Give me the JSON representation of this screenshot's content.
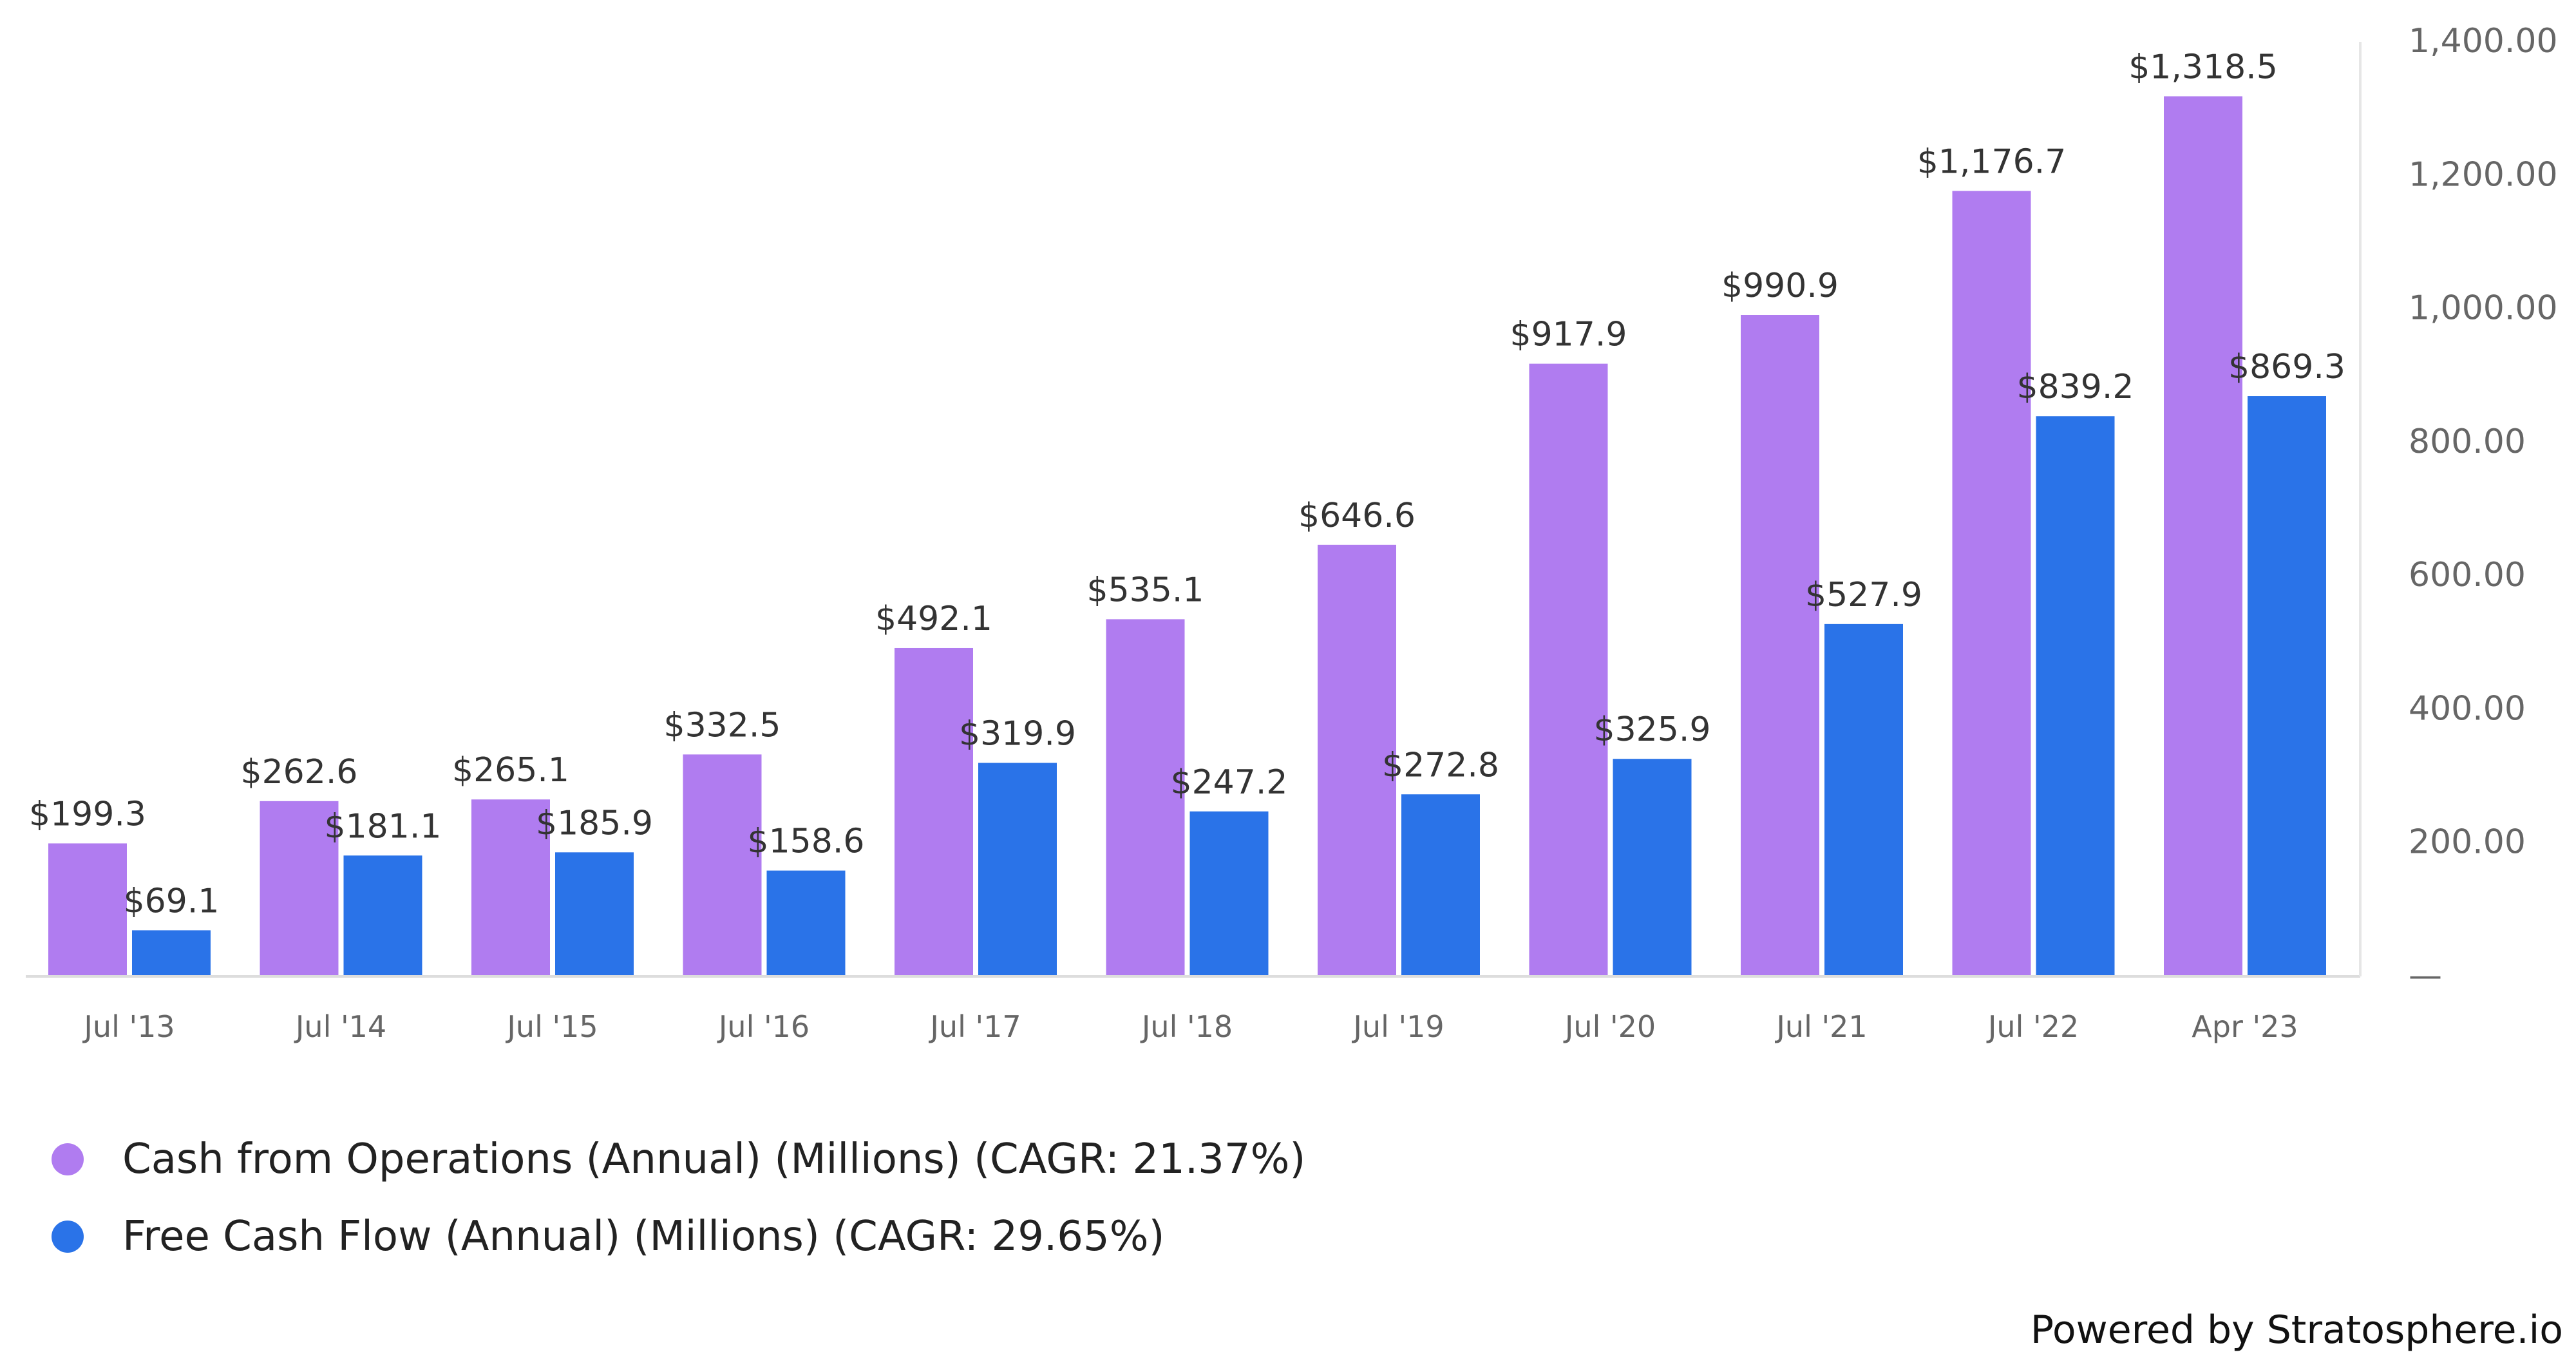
{
  "chart_data": {
    "type": "bar",
    "categories": [
      "Jul '13",
      "Jul '14",
      "Jul '15",
      "Jul '16",
      "Jul '17",
      "Jul '18",
      "Jul '19",
      "Jul '20",
      "Jul '21",
      "Jul '22",
      "Apr '23"
    ],
    "series": [
      {
        "name": "Cash from Operations (Annual) (Millions) (CAGR: 21.37%)",
        "color": "#b07cf0",
        "values": [
          199.3,
          262.6,
          265.1,
          332.5,
          492.1,
          535.1,
          646.6,
          917.9,
          990.9,
          1176.7,
          1318.5
        ],
        "labels": [
          "$199.3",
          "$262.6",
          "$265.1",
          "$332.5",
          "$492.1",
          "$535.1",
          "$646.6",
          "$917.9",
          "$990.9",
          "$1,176.7",
          "$1,318.5"
        ]
      },
      {
        "name": "Free Cash Flow (Annual) (Millions) (CAGR: 29.65%)",
        "color": "#2a73e8",
        "values": [
          69.1,
          181.1,
          185.9,
          158.6,
          319.9,
          247.2,
          272.8,
          325.9,
          527.9,
          839.2,
          869.3
        ],
        "labels": [
          "$69.1",
          "$181.1",
          "$185.9",
          "$158.6",
          "$319.9",
          "$247.2",
          "$272.8",
          "$325.9",
          "$527.9",
          "$839.2",
          "$869.3"
        ]
      }
    ],
    "y_ticks": [
      "—",
      "200.00",
      "400.00",
      "600.00",
      "800.00",
      "1,000.00",
      "1,200.00",
      "1,400.00"
    ],
    "y_axis_side": "right",
    "ylim": [
      0,
      1400
    ],
    "grid": false,
    "legend_position": "bottom-left"
  },
  "footer": {
    "powered_by": "Powered by Stratosphere.io"
  }
}
